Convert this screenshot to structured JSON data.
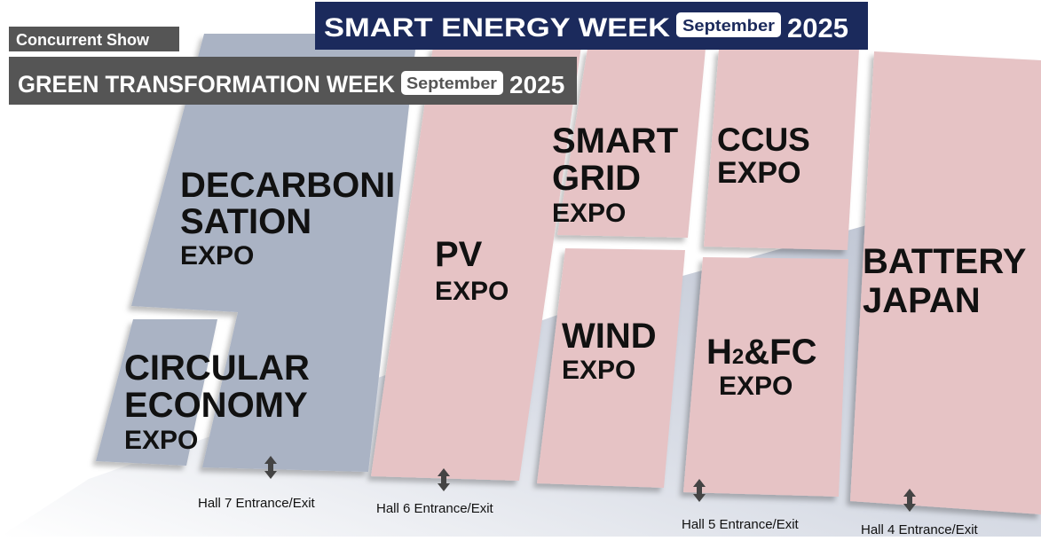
{
  "header": {
    "concurrent_label": "Concurrent Show",
    "main": {
      "title": "SMART ENERGY WEEK",
      "badge": "September",
      "year": "2025"
    },
    "sub": {
      "title": "GREEN TRANSFORMATION WEEK",
      "badge": "September",
      "year": "2025"
    }
  },
  "zones": {
    "decarbonisation": [
      "DECARBONI",
      "SATION",
      "EXPO"
    ],
    "circular": [
      "CIRCULAR",
      "ECONOMY",
      "EXPO"
    ],
    "pv": [
      "PV",
      "EXPO"
    ],
    "smart_grid": [
      "SMART",
      "GRID",
      "EXPO"
    ],
    "ccus": [
      "CCUS",
      "EXPO"
    ],
    "wind": [
      "WIND",
      "EXPO"
    ],
    "h2fc": {
      "parts": [
        "H",
        "2",
        "&FC"
      ],
      "expo": "EXPO"
    },
    "battery": [
      "BATTERY",
      "JAPAN"
    ]
  },
  "entrances": [
    "Hall 7 Entrance/Exit",
    "Hall 6 Entrance/Exit",
    "Hall 5 Entrance/Exit",
    "Hall 4 Entrance/Exit"
  ]
}
